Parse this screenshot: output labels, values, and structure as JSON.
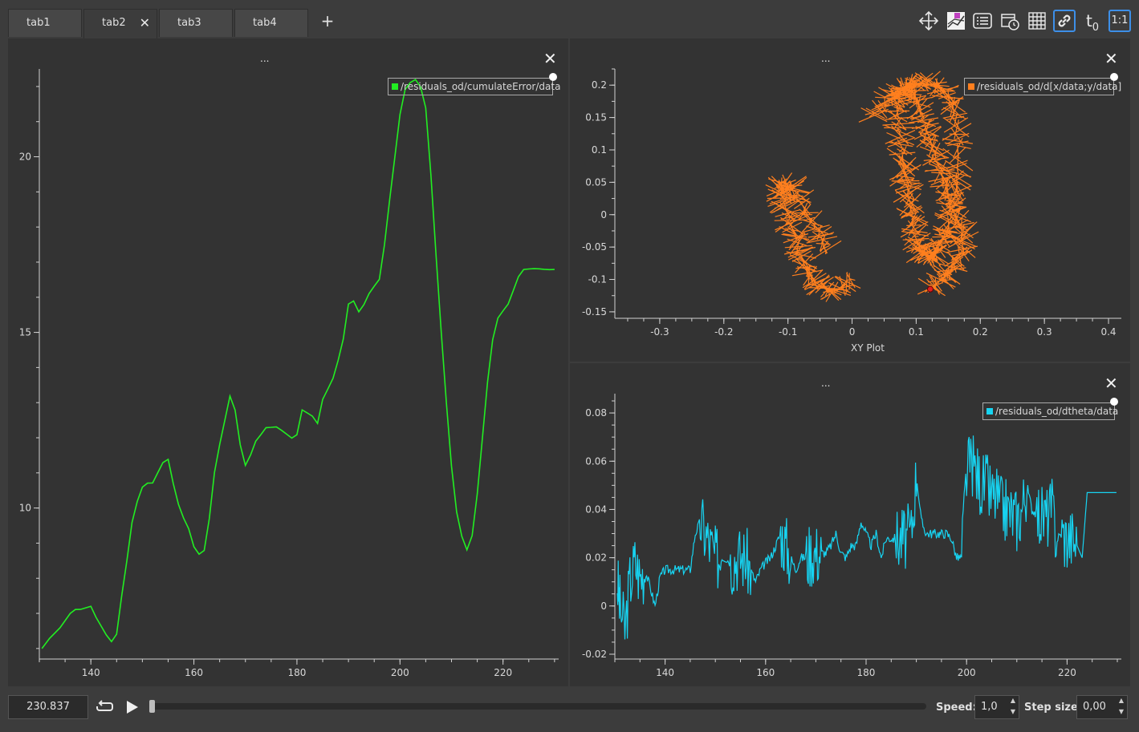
{
  "tabs": [
    {
      "label": "tab1"
    },
    {
      "label": "tab2",
      "active": true
    },
    {
      "label": "tab3"
    },
    {
      "label": "tab4"
    }
  ],
  "add_tab_label": "+",
  "toolbar": {
    "ratio_label": "1:1",
    "t0_label": "t",
    "t0_sub": "0",
    "icons": [
      "move-icon",
      "legend-toggle-icon",
      "list-icon",
      "calendar-clock-icon",
      "grid-icon",
      "link-icon",
      "time-offset-icon",
      "ratio-icon"
    ]
  },
  "colors": {
    "green": "#22ee22",
    "orange": "#ff7f1e",
    "cyan": "#17d4f2",
    "accent": "#3d8fe8"
  },
  "panels": {
    "left": {
      "title": "...",
      "close": "✕",
      "legend": "/residuals_od/cumulateError/data"
    },
    "top_right": {
      "title": "...",
      "close": "✕",
      "legend": "/residuals_od/d[x/data;y/data]",
      "xlabel": "XY Plot"
    },
    "bottom_right": {
      "title": "...",
      "close": "✕",
      "legend": "/residuals_od/dtheta/data"
    }
  },
  "chart_data": [
    {
      "type": "line",
      "series": [
        {
          "name": "/residuals_od/cumulateError/data"
        }
      ],
      "x": [
        130.5,
        132,
        134,
        136,
        137,
        138,
        140,
        141,
        143,
        144,
        145,
        146,
        147,
        148,
        149,
        150,
        151,
        152,
        153,
        154,
        155,
        156,
        157,
        158,
        159,
        160,
        161,
        162,
        163,
        164,
        165,
        166,
        167,
        168,
        169,
        170,
        171,
        172,
        173,
        174,
        175,
        176,
        177,
        178,
        179,
        180,
        181,
        182,
        183,
        184,
        185,
        186,
        187,
        188,
        189,
        190,
        191,
        192,
        193,
        194,
        195,
        196,
        197,
        198,
        199,
        200,
        201,
        202,
        203,
        204,
        205,
        206,
        207,
        208,
        209,
        210,
        211,
        212,
        213,
        214,
        215,
        216,
        217,
        218,
        219,
        220,
        221,
        222,
        223,
        224,
        225,
        226,
        227,
        228,
        229,
        230
      ],
      "y": [
        6.0,
        6.3,
        6.6,
        7.0,
        7.1,
        7.1,
        7.2,
        6.9,
        6.4,
        6.2,
        6.4,
        7.5,
        8.5,
        9.6,
        10.2,
        10.6,
        10.7,
        10.7,
        11.0,
        11.3,
        11.4,
        10.7,
        10.1,
        9.7,
        9.4,
        8.9,
        8.7,
        8.8,
        9.7,
        11.0,
        11.8,
        12.5,
        13.2,
        12.8,
        11.8,
        11.2,
        11.5,
        11.9,
        12.1,
        12.3,
        12.3,
        12.3,
        12.2,
        12.1,
        12.0,
        12.1,
        12.8,
        12.7,
        12.6,
        12.4,
        13.1,
        13.4,
        13.7,
        14.2,
        14.8,
        15.8,
        15.9,
        15.6,
        15.8,
        16.1,
        16.3,
        16.5,
        17.5,
        18.8,
        20.0,
        21.2,
        21.9,
        22.1,
        22.2,
        22.0,
        21.4,
        19.5,
        17.2,
        15.0,
        13.0,
        11.2,
        9.9,
        9.2,
        8.8,
        9.2,
        10.4,
        12.0,
        13.6,
        14.8,
        15.4,
        15.6,
        15.8,
        16.2,
        16.6,
        16.8,
        16.8,
        16.8,
        16.8,
        16.8,
        16.8,
        16.8
      ],
      "xlim": [
        130,
        230.8
      ],
      "ylim": [
        5.7,
        22.5
      ],
      "xticks": [
        140,
        160,
        180,
        200,
        220
      ],
      "yticks": [
        10,
        15,
        20
      ]
    },
    {
      "type": "scatter",
      "series": [
        {
          "name": "/residuals_od/d[x/data;y/data]"
        }
      ],
      "xlabel": "XY Plot",
      "centerline_x": [
        0.12,
        0.14,
        0.155,
        0.17,
        0.175,
        0.16,
        0.15,
        0.14,
        0.13,
        0.12,
        0.11,
        0.1,
        0.085,
        0.075,
        0.07,
        0.075,
        0.08,
        0.085,
        0.09,
        0.095,
        0.1,
        0.11,
        0.12,
        0.13,
        0.14,
        0.15,
        0.16,
        0.165,
        0.165,
        0.16,
        0.145,
        0.12,
        0.09,
        0.06,
        0.03,
        0.0,
        -0.03,
        -0.05,
        -0.07,
        -0.08,
        -0.09,
        -0.1,
        -0.11,
        -0.11,
        -0.09,
        -0.07,
        -0.05,
        -0.04
      ],
      "centerline_y": [
        -0.115,
        -0.1,
        -0.085,
        -0.06,
        -0.03,
        0.0,
        0.03,
        0.06,
        0.09,
        0.12,
        0.15,
        0.18,
        0.2,
        0.19,
        0.16,
        0.12,
        0.08,
        0.05,
        0.02,
        -0.01,
        -0.04,
        -0.06,
        -0.065,
        -0.06,
        -0.04,
        -0.02,
        0.02,
        0.06,
        0.11,
        0.16,
        0.19,
        0.205,
        0.2,
        0.18,
        0.15,
        -0.1,
        -0.12,
        -0.11,
        -0.09,
        -0.06,
        -0.03,
        0.0,
        0.03,
        0.05,
        0.04,
        0.0,
        -0.03,
        -0.06
      ],
      "marker": {
        "x": 0.122,
        "y": -0.115
      },
      "xlim": [
        -0.37,
        0.42
      ],
      "ylim": [
        -0.16,
        0.225
      ],
      "xticks": [
        -0.3,
        -0.2,
        -0.1,
        0,
        0.1,
        0.2,
        0.3,
        0.4
      ],
      "yticks": [
        -0.15,
        -0.1,
        -0.05,
        0,
        0.05,
        0.1,
        0.15,
        0.2
      ]
    },
    {
      "type": "line",
      "series": [
        {
          "name": "/residuals_od/dtheta/data"
        }
      ],
      "x": [
        130.5,
        131,
        132,
        133,
        134,
        135,
        136,
        137,
        138,
        139,
        140,
        141,
        142,
        143,
        144,
        145,
        146,
        147,
        148,
        149,
        150,
        151,
        152,
        153,
        154,
        155,
        156,
        157,
        158,
        159,
        160,
        161,
        162,
        163,
        164,
        165,
        166,
        167,
        168,
        169,
        170,
        171,
        172,
        173,
        174,
        175,
        176,
        177,
        178,
        179,
        180,
        181,
        182,
        183,
        184,
        185,
        186,
        187,
        188,
        189,
        190,
        191,
        192,
        193,
        194,
        195,
        196,
        197,
        198,
        199,
        200,
        201,
        202,
        203,
        204,
        205,
        206,
        207,
        208,
        209,
        210,
        211,
        212,
        213,
        214,
        215,
        216,
        217,
        218,
        219,
        220,
        221,
        222,
        223,
        224,
        225,
        226,
        227,
        228,
        229,
        230
      ],
      "y": [
        0.01,
        0.0,
        -0.01,
        0.01,
        0.018,
        0.012,
        0.015,
        0.008,
        0.0,
        0.012,
        0.015,
        0.015,
        0.015,
        0.015,
        0.015,
        0.015,
        0.03,
        0.035,
        0.03,
        0.025,
        0.02,
        0.02,
        0.02,
        0.018,
        0.02,
        0.02,
        0.02,
        0.015,
        0.01,
        0.015,
        0.018,
        0.02,
        0.025,
        0.03,
        0.025,
        0.02,
        0.015,
        0.02,
        0.02,
        0.022,
        0.022,
        0.022,
        0.022,
        0.025,
        0.03,
        0.022,
        0.02,
        0.025,
        0.025,
        0.035,
        0.03,
        0.025,
        0.03,
        0.02,
        0.028,
        0.028,
        0.028,
        0.028,
        0.028,
        0.03,
        0.055,
        0.035,
        0.03,
        0.03,
        0.03,
        0.03,
        0.03,
        0.028,
        0.02,
        0.02,
        0.055,
        0.06,
        0.055,
        0.05,
        0.05,
        0.045,
        0.045,
        0.04,
        0.04,
        0.038,
        0.036,
        0.04,
        0.05,
        0.04,
        0.038,
        0.037,
        0.037,
        0.04,
        0.028,
        0.03,
        0.028,
        0.028,
        0.025,
        0.02,
        0.047,
        0.047,
        0.047,
        0.047,
        0.047,
        0.047,
        0.047
      ],
      "xlim": [
        130,
        230.8
      ],
      "ylim": [
        -0.022,
        0.088
      ],
      "xticks": [
        140,
        160,
        180,
        200,
        220
      ],
      "yticks": [
        -0.02,
        0,
        0.02,
        0.04,
        0.06,
        0.08
      ]
    }
  ],
  "bottom": {
    "time_value": "230.837",
    "speed_label": "Speed:",
    "speed_value": "1,0",
    "step_label": "Step size:",
    "step_value": "0,00",
    "spin_up": "▲",
    "spin_down": "▼"
  }
}
